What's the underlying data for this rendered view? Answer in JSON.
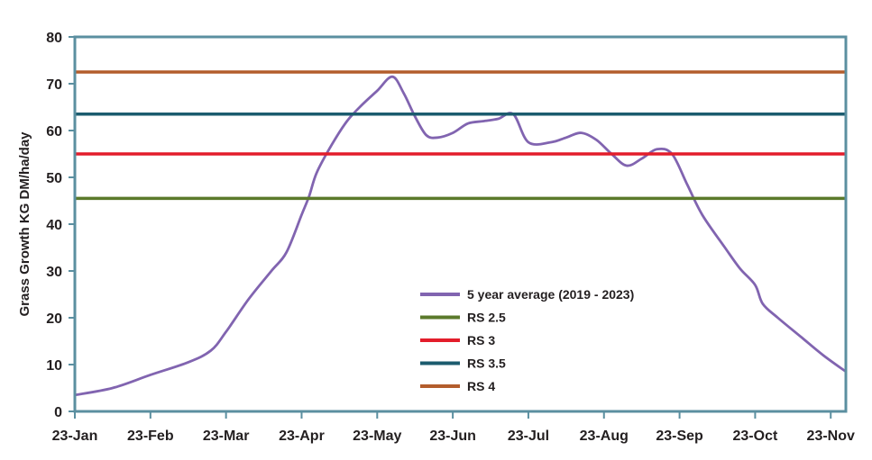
{
  "chart_data": {
    "type": "line",
    "ylabel": "Grass Growth KG DM/ha/day",
    "xlabel": "",
    "ylim": [
      0,
      80
    ],
    "yticks": [
      0,
      10,
      20,
      30,
      40,
      50,
      60,
      70,
      80
    ],
    "xlim": [
      0,
      10.2
    ],
    "categories": [
      "23-Jan",
      "23-Feb",
      "23-Mar",
      "23-Apr",
      "23-May",
      "23-Jun",
      "23-Jul",
      "23-Aug",
      "23-Sep",
      "23-Oct",
      "23-Nov"
    ],
    "grid": false,
    "legend_position": "bottom-center",
    "series": [
      {
        "name": "5 year average (2019 - 2023)",
        "color": "#8164b0",
        "kind": "curve",
        "points": [
          [
            0.0,
            3.5
          ],
          [
            0.5,
            5.0
          ],
          [
            1.0,
            7.8
          ],
          [
            1.5,
            10.5
          ],
          [
            1.8,
            13.0
          ],
          [
            2.0,
            17.0
          ],
          [
            2.3,
            24.0
          ],
          [
            2.6,
            30.0
          ],
          [
            2.8,
            34.0
          ],
          [
            3.0,
            42.0
          ],
          [
            3.1,
            46.0
          ],
          [
            3.2,
            51.0
          ],
          [
            3.4,
            57.0
          ],
          [
            3.6,
            62.0
          ],
          [
            3.8,
            65.5
          ],
          [
            4.0,
            68.5
          ],
          [
            4.2,
            71.5
          ],
          [
            4.35,
            68.0
          ],
          [
            4.5,
            63.0
          ],
          [
            4.65,
            59.0
          ],
          [
            4.8,
            58.5
          ],
          [
            5.0,
            59.5
          ],
          [
            5.2,
            61.5
          ],
          [
            5.4,
            62.0
          ],
          [
            5.6,
            62.5
          ],
          [
            5.8,
            63.5
          ],
          [
            6.0,
            57.5
          ],
          [
            6.3,
            57.5
          ],
          [
            6.5,
            58.5
          ],
          [
            6.7,
            59.5
          ],
          [
            6.9,
            58.0
          ],
          [
            7.1,
            55.0
          ],
          [
            7.3,
            52.5
          ],
          [
            7.5,
            54.0
          ],
          [
            7.7,
            56.0
          ],
          [
            7.9,
            55.0
          ],
          [
            8.1,
            48.5
          ],
          [
            8.3,
            42.0
          ],
          [
            8.6,
            35.0
          ],
          [
            8.8,
            30.5
          ],
          [
            9.0,
            27.0
          ],
          [
            9.1,
            23.0
          ],
          [
            9.3,
            20.0
          ],
          [
            9.6,
            16.0
          ],
          [
            9.9,
            12.0
          ],
          [
            10.2,
            8.5
          ]
        ]
      },
      {
        "name": "RS 2.5",
        "color": "#5b7a2b",
        "kind": "constant",
        "value": 45.5
      },
      {
        "name": "RS 3",
        "color": "#e31d2b",
        "kind": "constant",
        "value": 55
      },
      {
        "name": "RS 3.5",
        "color": "#1b5b6e",
        "kind": "constant",
        "value": 63.5
      },
      {
        "name": "RS 4",
        "color": "#b35d2c",
        "kind": "constant",
        "value": 72.5
      }
    ],
    "frame_color": "#5b8fa0"
  }
}
